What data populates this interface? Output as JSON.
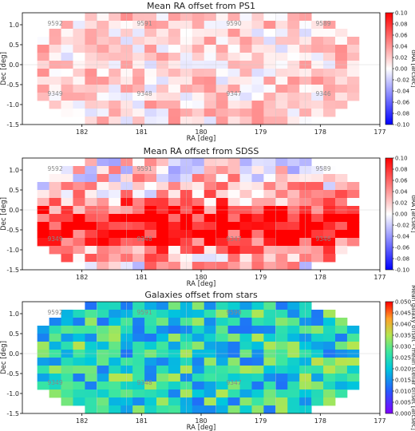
{
  "figure": {
    "panel_count": 3
  },
  "chart_data": [
    {
      "type": "heatmap",
      "title": "Mean RA offset from PS1",
      "xlabel": "RA [deg]",
      "ylabel": "Dec [deg]",
      "x_ticks": [
        182,
        181,
        180,
        179,
        178,
        177
      ],
      "y_ticks": [
        1.0,
        0.5,
        0.0,
        -0.5,
        -1.0,
        -1.5
      ],
      "y_tick_labels": [
        "1.0",
        "0.5",
        "0.0",
        "-0.5",
        "-1.0",
        "-1.5"
      ],
      "xlim": [
        183.0,
        177.0
      ],
      "ylim": [
        -1.5,
        1.3
      ],
      "x_inverted": true,
      "colormap": "bwr",
      "colorbar_label": "dRA [arcsec]",
      "colorbar_range": [
        -0.1,
        0.1
      ],
      "colorbar_ticks": [
        "0.10",
        "0.08",
        "0.06",
        "0.04",
        "0.02",
        "0.00",
        "-0.02",
        "-0.04",
        "-0.06",
        "-0.08",
        "-0.10"
      ],
      "field_labels": [
        {
          "text": "9592",
          "ra": 182.45,
          "dec": 0.98
        },
        {
          "text": "9591",
          "ra": 180.95,
          "dec": 0.98
        },
        {
          "text": "9590",
          "ra": 179.45,
          "dec": 0.98
        },
        {
          "text": "9589",
          "ra": 177.95,
          "dec": 0.98
        },
        {
          "text": "9349",
          "ra": 182.45,
          "dec": -0.78
        },
        {
          "text": "9348",
          "ra": 180.95,
          "dec": -0.78
        },
        {
          "text": "9347",
          "ra": 179.45,
          "dec": -0.78
        },
        {
          "text": "9346",
          "ra": 177.95,
          "dec": -0.78
        }
      ],
      "value_distribution": "mostly small positive offsets (light red), scattered light blue cells",
      "typical_value": 0.015,
      "spread": 0.03
    },
    {
      "type": "heatmap",
      "title": "Mean RA offset from SDSS",
      "xlabel": "RA [deg]",
      "ylabel": "Dec [deg]",
      "x_ticks": [
        182,
        181,
        180,
        179,
        178,
        177
      ],
      "y_ticks": [
        1.0,
        0.5,
        0.0,
        -0.5,
        -1.0,
        -1.5
      ],
      "y_tick_labels": [
        "1.0",
        "0.5",
        "0.0",
        "-0.5",
        "-1.0",
        "-1.5"
      ],
      "xlim": [
        183.0,
        177.0
      ],
      "ylim": [
        -1.5,
        1.3
      ],
      "x_inverted": true,
      "colormap": "bwr",
      "colorbar_label": "dRA [arcsec]",
      "colorbar_range": [
        -0.1,
        0.1
      ],
      "colorbar_ticks": [
        "0.10",
        "0.08",
        "0.06",
        "0.04",
        "0.02",
        "0.00",
        "-0.02",
        "-0.04",
        "-0.06",
        "-0.08",
        "-0.10"
      ],
      "field_labels": [
        {
          "text": "9592",
          "ra": 182.45,
          "dec": 0.98
        },
        {
          "text": "9591",
          "ra": 180.95,
          "dec": 0.98
        },
        {
          "text": "9589",
          "ra": 177.95,
          "dec": 0.98
        },
        {
          "text": "9349",
          "ra": 182.45,
          "dec": -0.78
        },
        {
          "text": "9348",
          "ra": 180.95,
          "dec": -0.78
        },
        {
          "text": "9347",
          "ra": 179.45,
          "dec": -0.78
        },
        {
          "text": "9346",
          "ra": 177.95,
          "dec": -0.78
        }
      ],
      "value_distribution": "strong positive offsets (saturated red) along central Dec band, mixed blue cells in upper rows",
      "typical_value": 0.05,
      "spread": 0.07
    },
    {
      "type": "heatmap",
      "title": "Galaxies offset from stars",
      "xlabel": "RA [deg]",
      "ylabel": "Dec [deg]",
      "x_ticks": [
        182,
        181,
        180,
        179,
        178,
        177
      ],
      "y_ticks": [
        1.0,
        0.5,
        0.0,
        -0.5,
        -1.0,
        -1.5
      ],
      "y_tick_labels": [
        "1.0",
        "0.5",
        "0.0",
        "-0.5",
        "-1.0",
        "-1.5"
      ],
      "xlim": [
        183.0,
        177.0
      ],
      "ylim": [
        -1.5,
        1.3
      ],
      "x_inverted": true,
      "colormap": "rainbow",
      "colorbar_label": "Mean galaxy offset - mean stellar offset [arcsec]",
      "colorbar_range": [
        0.0,
        0.05
      ],
      "colorbar_ticks": [
        "0.050",
        "0.045",
        "0.040",
        "0.035",
        "0.030",
        "0.025",
        "0.020",
        "0.015",
        "0.010",
        "0.005",
        "0.000"
      ],
      "field_labels": [
        {
          "text": "9592",
          "ra": 182.45,
          "dec": 0.98
        },
        {
          "text": "9591",
          "ra": 180.95,
          "dec": 0.98
        },
        {
          "text": "9590",
          "ra": 179.45,
          "dec": 0.98
        },
        {
          "text": "9349",
          "ra": 182.45,
          "dec": -0.78
        },
        {
          "text": "9348",
          "ra": 180.95,
          "dec": -0.78
        },
        {
          "text": "9347",
          "ra": 179.45,
          "dec": -0.78
        }
      ],
      "value_distribution": "mostly teal/green values around 0.025, occasional blue and orange cells",
      "typical_value": 0.024,
      "spread": 0.012
    }
  ],
  "grid": {
    "ra_min": 182.75,
    "ra_max": 177.35,
    "dec_min": -1.5,
    "dec_max": 1.3,
    "cols": 27,
    "rows": 14,
    "footprint": "elliptical"
  }
}
